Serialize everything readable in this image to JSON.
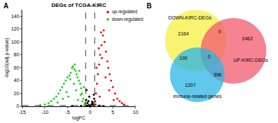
{
  "chart_data": [
    {
      "type": "scatter",
      "panel": "A",
      "title": "DEGs of TCGA-KIRC",
      "x_label": "logFC",
      "y_label": "-log10(adj.p-value)",
      "xlim": [
        -15,
        10
      ],
      "xticks": [
        -15,
        -10,
        -5,
        0,
        5,
        10
      ],
      "ylim": [
        0,
        150
      ],
      "yticks": [
        0,
        20,
        40,
        60,
        80,
        100,
        120,
        140
      ],
      "grid": false,
      "legend": "top right",
      "marker": "circle",
      "reference_lines": {
        "x": [
          -1,
          1
        ],
        "y": [
          1.3
        ]
      },
      "series": [
        {
          "color": "#000000",
          "x": [
            -0.9,
            -0.6,
            -0.3,
            0,
            0.3,
            0.6,
            0.9,
            -0.8,
            -0.4,
            0.1,
            0.5,
            0.8,
            -0.2,
            0.4,
            -0.7,
            0.7,
            -2,
            2,
            -4,
            3
          ],
          "values": [
            10,
            5,
            2,
            1,
            3,
            6,
            12,
            25,
            8,
            0.5,
            4,
            18,
            15,
            7,
            1,
            2,
            0.8,
            1,
            0.5,
            0.3
          ]
        },
        {
          "name": "up-regulated",
          "color": "#e8161c",
          "x": [
            1.1,
            1.3,
            1.5,
            1.7,
            2,
            2.2,
            2.5,
            2.8,
            3,
            3.2,
            3.5,
            3.8,
            4,
            4.3,
            4.6,
            5,
            5.5,
            6,
            6.5,
            7,
            7.5,
            1.4,
            1.9,
            2.4,
            2.6,
            3.4,
            1.2,
            2.1,
            4.2,
            5.2
          ],
          "values": [
            8,
            20,
            35,
            50,
            65,
            80,
            95,
            110,
            118,
            100,
            85,
            70,
            60,
            50,
            40,
            30,
            20,
            12,
            8,
            5,
            3,
            60,
            90,
            115,
            75,
            45,
            3,
            15,
            25,
            10
          ]
        },
        {
          "name": "down-regulated",
          "color": "#1ed41e",
          "x": [
            -1.2,
            -1.5,
            -1.8,
            -2,
            -2.2,
            -2.5,
            -2.8,
            -3,
            -3.2,
            -3.5,
            -3.8,
            -4,
            -4.3,
            -4.6,
            -5,
            -5.4,
            -5.8,
            -6.2,
            -6.6,
            -7,
            -7.5,
            -8,
            -8.6,
            -9.2,
            -10,
            -11,
            -1.4,
            -2.4,
            -3.4,
            -4.4,
            -2.1,
            -3.1,
            -1.7,
            -2.7,
            -5.2,
            -6,
            -7.2,
            -1.3,
            -3.6,
            -4.8
          ],
          "values": [
            5,
            12,
            20,
            28,
            35,
            40,
            45,
            50,
            55,
            58,
            62,
            60,
            52,
            48,
            45,
            40,
            35,
            30,
            25,
            20,
            15,
            12,
            8,
            5,
            3,
            2,
            30,
            55,
            65,
            42,
            18,
            25,
            8,
            10,
            22,
            12,
            6,
            2,
            35,
            15
          ]
        }
      ]
    },
    {
      "type": "venn",
      "panel": "B",
      "sets": [
        {
          "name": "DOWN-KIRC-DEGs",
          "color": "#f5ef42"
        },
        {
          "name": "UP-KIRC-DEGs",
          "color": "#f25a6e"
        },
        {
          "name": "immune-related genes",
          "color": "#29b6e6"
        }
      ],
      "regions": [
        {
          "sets": [
            "DOWN-KIRC-DEGs"
          ],
          "value": 2164
        },
        {
          "sets": [
            "DOWN-KIRC-DEGs",
            "UP-KIRC-DEGs"
          ],
          "value": 0
        },
        {
          "sets": [
            "UP-KIRC-DEGs"
          ],
          "value": 2462
        },
        {
          "sets": [
            "DOWN-KIRC-DEGs",
            "immune-related genes"
          ],
          "value": 190
        },
        {
          "sets": [
            "DOWN-KIRC-DEGs",
            "UP-KIRC-DEGs",
            "immune-related genes"
          ],
          "value": 0
        },
        {
          "sets": [
            "UP-KIRC-DEGs",
            "immune-related genes"
          ],
          "value": 396
        },
        {
          "sets": [
            "immune-related genes"
          ],
          "value": 1207
        }
      ]
    }
  ]
}
